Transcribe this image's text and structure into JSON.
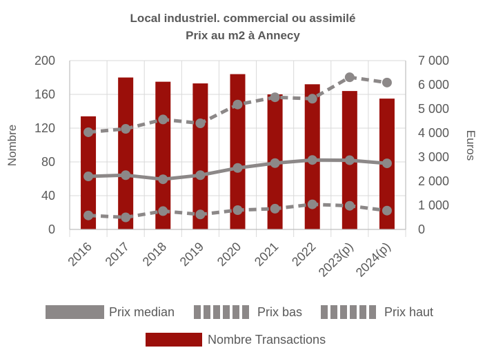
{
  "chart_data": {
    "type": "bar",
    "title": "Local industriel. commercial ou assimilé",
    "subtitle": "Prix au m2 à Annecy",
    "categories": [
      "2016",
      "2017",
      "2018",
      "2019",
      "2020",
      "2021",
      "2022",
      "2023(p)",
      "2024(p)"
    ],
    "ylabel": "Nombre",
    "y2label": "Euros",
    "ylim": [
      0,
      200
    ],
    "y2lim": [
      0,
      7000
    ],
    "yticks": [
      "0",
      "40",
      "80",
      "120",
      "160",
      "200"
    ],
    "y2ticks": [
      "0",
      "1 000",
      "2 000",
      "3 000",
      "4 000",
      "5 000",
      "6 000",
      "7 000"
    ],
    "grid": true,
    "legend_position": "bottom",
    "colors": {
      "bars": "#9B0F0A",
      "lines": "#8C8888",
      "grid": "#D9D9D9",
      "axis": "#BFBFBF"
    },
    "series": [
      {
        "name": "Nombre Transactions",
        "type": "bar",
        "axis": "left",
        "values": [
          134,
          180,
          175,
          173,
          184,
          160,
          172,
          164,
          155
        ]
      },
      {
        "name": "Prix median",
        "type": "line",
        "style": "solid",
        "axis": "right",
        "values": [
          2200,
          2250,
          2080,
          2250,
          2550,
          2750,
          2880,
          2870,
          2740
        ]
      },
      {
        "name": "Prix bas",
        "type": "line",
        "style": "dashed",
        "axis": "right",
        "values": [
          580,
          500,
          760,
          620,
          800,
          860,
          1040,
          980,
          780
        ]
      },
      {
        "name": "Prix haut",
        "type": "line",
        "style": "dashed",
        "axis": "right",
        "values": [
          4030,
          4170,
          4560,
          4400,
          5180,
          5480,
          5420,
          6310,
          6090
        ]
      }
    ],
    "legend": [
      "Prix median",
      "Prix bas",
      "Prix haut",
      "Nombre Transactions"
    ]
  }
}
